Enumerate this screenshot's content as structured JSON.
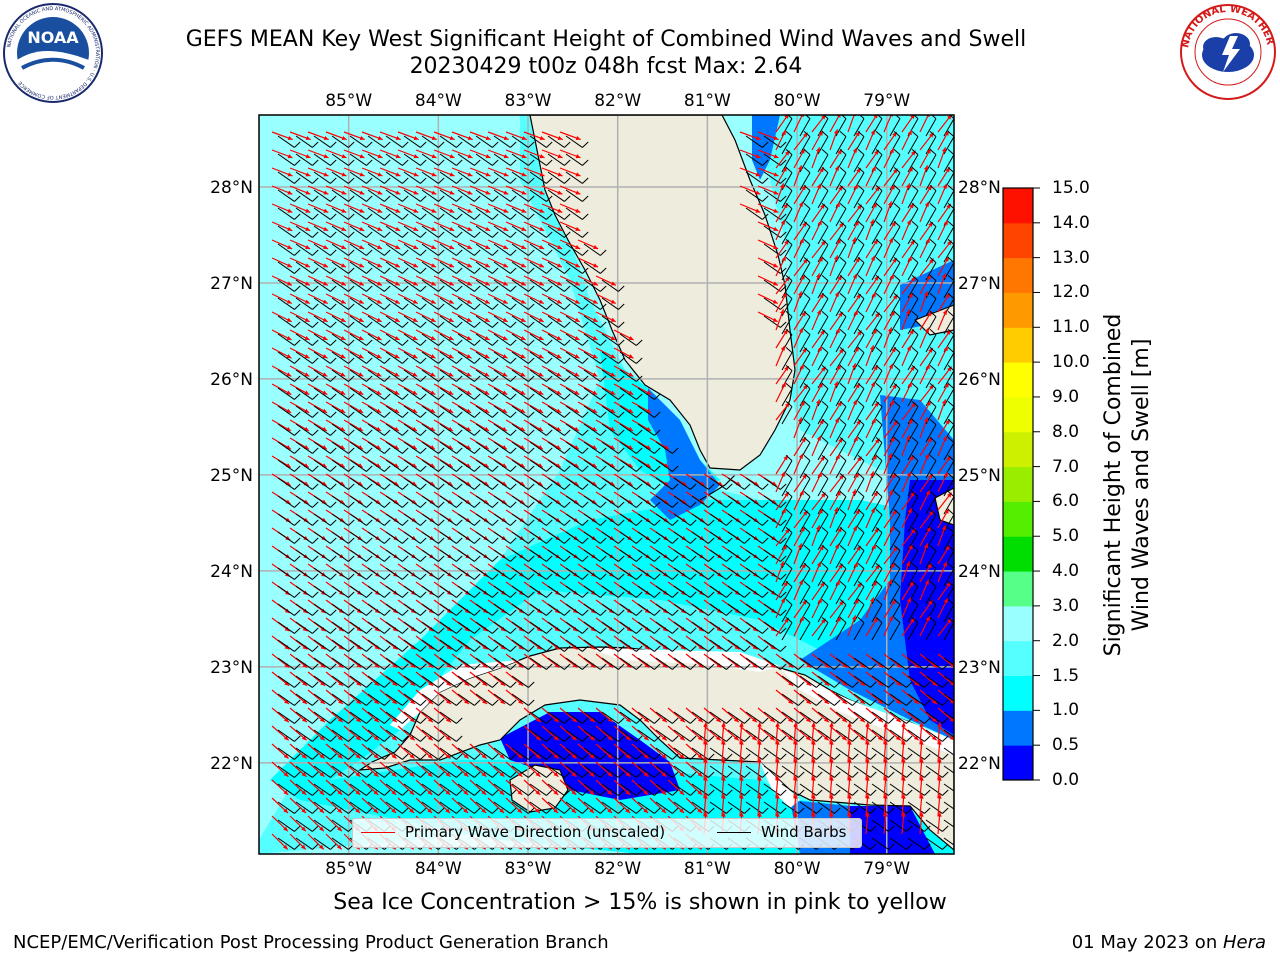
{
  "title": {
    "line1": "GEFS MEAN Key West Significant Height of Combined Wind Waves and Swell",
    "line2": "20230429 t00z 048h fcst   Max: 2.64"
  },
  "logos": {
    "left": {
      "name": "noaa-logo",
      "text": "NOAA",
      "ring_text": "NATIONAL OCEANIC AND ATMOSPHERIC ADMINISTRATION · U.S. DEPARTMENT OF COMMERCE"
    },
    "right": {
      "name": "nws-logo",
      "ring_text": "NATIONAL WEATHER SERVICE"
    }
  },
  "map": {
    "lon_labels": [
      "85°W",
      "84°W",
      "83°W",
      "82°W",
      "81°W",
      "80°W",
      "79°W"
    ],
    "lon_values": [
      -85,
      -84,
      -83,
      -82,
      -81,
      -80,
      -79
    ],
    "lat_labels": [
      "28°N",
      "27°N",
      "26°N",
      "25°N",
      "24°N",
      "23°N",
      "22°N"
    ],
    "lat_values": [
      28,
      27,
      26,
      25,
      24,
      23,
      22
    ],
    "lon_range": [
      -86.0,
      -78.25
    ],
    "lat_range": [
      21.05,
      28.75
    ],
    "land_color": "#eeecdc",
    "coast_color": "#000000",
    "grid_color": "#b0b0b0",
    "wave_arrow_color": "#ff0000",
    "wind_barb_color": "#000000",
    "background_field_color": "#99ffff"
  },
  "legend": {
    "primary_wave": "Primary Wave Direction (unscaled)",
    "wind_barbs": "Wind Barbs"
  },
  "colorbar": {
    "label_line1": "Significant Height of Combined",
    "label_line2": "Wind Waves and Swell [m]",
    "ticks": [
      "0.0",
      "0.5",
      "1.0",
      "1.5",
      "2.0",
      "3.0",
      "4.0",
      "5.0",
      "6.0",
      "7.0",
      "8.0",
      "9.0",
      "10.0",
      "11.0",
      "12.0",
      "13.0",
      "14.0",
      "15.0"
    ],
    "colors": [
      "#0000ff",
      "#0077ff",
      "#00ffff",
      "#55ffff",
      "#99ffff",
      "#55ff88",
      "#00dd00",
      "#55ee00",
      "#99ee00",
      "#ccf000",
      "#eeff00",
      "#ffff00",
      "#ffcc00",
      "#ff9900",
      "#ff7700",
      "#ff4400",
      "#ff1100"
    ]
  },
  "caption": "Sea Ice Concentration > 15% is shown in pink to yellow",
  "footer": {
    "left": "NCEP/EMC/Verification Post Processing Product Generation Branch",
    "right_prefix": "01 May 2023 on ",
    "right_host": "Hera"
  }
}
